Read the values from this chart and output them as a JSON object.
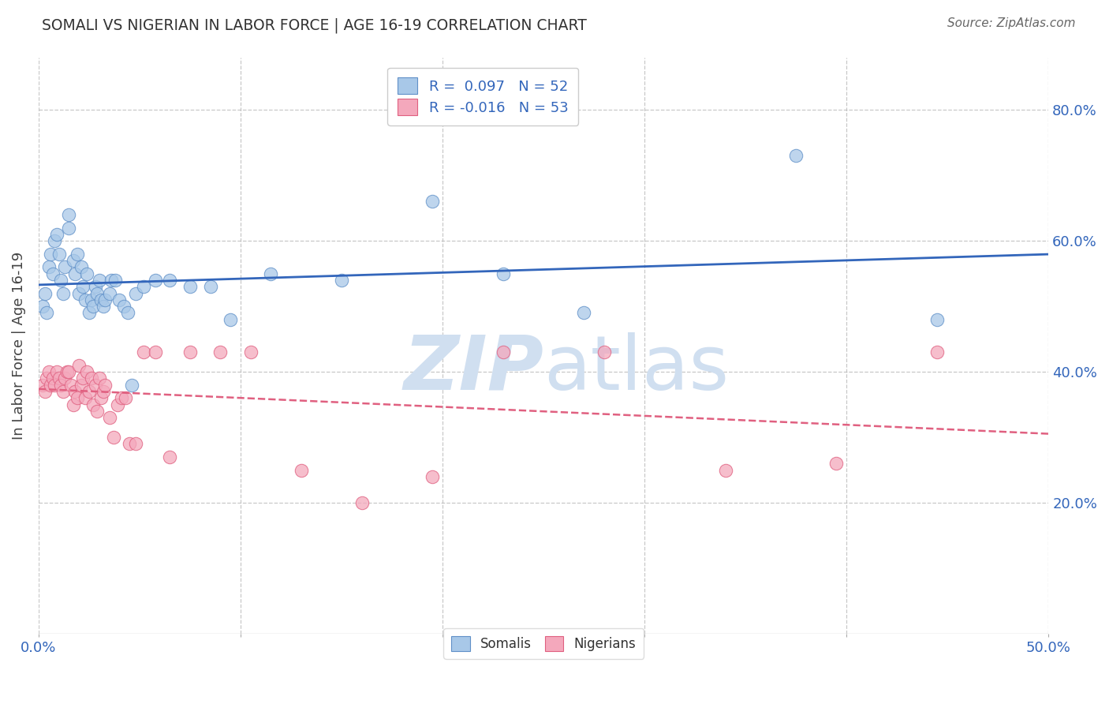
{
  "title": "SOMALI VS NIGERIAN IN LABOR FORCE | AGE 16-19 CORRELATION CHART",
  "source": "Source: ZipAtlas.com",
  "ylabel": "In Labor Force | Age 16-19",
  "xlim": [
    0.0,
    0.5
  ],
  "ylim": [
    0.0,
    0.88
  ],
  "yticks": [
    0.2,
    0.4,
    0.6,
    0.8
  ],
  "ytick_labels": [
    "20.0%",
    "40.0%",
    "60.0%",
    "80.0%"
  ],
  "xticks": [
    0.0,
    0.1,
    0.2,
    0.3,
    0.4,
    0.5
  ],
  "xtick_labels_show": [
    "0.0%",
    "50.0%"
  ],
  "somali_R": 0.097,
  "somali_N": 52,
  "nigerian_R": -0.016,
  "nigerian_N": 53,
  "somali_color": "#A8C8E8",
  "nigerian_color": "#F4A8BC",
  "somali_edge_color": "#6090C8",
  "nigerian_edge_color": "#E06080",
  "somali_line_color": "#3366BB",
  "nigerian_line_color": "#E06080",
  "background_color": "#FFFFFF",
  "watermark_color": "#D0DFF0",
  "legend_label_somali": "Somalis",
  "legend_label_nigerian": "Nigerians",
  "grid_color": "#BBBBBB",
  "axis_color": "#3366BB",
  "somali_x": [
    0.002,
    0.003,
    0.004,
    0.005,
    0.006,
    0.007,
    0.008,
    0.009,
    0.01,
    0.011,
    0.012,
    0.013,
    0.015,
    0.015,
    0.017,
    0.018,
    0.019,
    0.02,
    0.021,
    0.022,
    0.023,
    0.024,
    0.025,
    0.026,
    0.027,
    0.028,
    0.029,
    0.03,
    0.031,
    0.032,
    0.033,
    0.035,
    0.036,
    0.038,
    0.04,
    0.042,
    0.044,
    0.046,
    0.048,
    0.052,
    0.058,
    0.065,
    0.075,
    0.085,
    0.095,
    0.115,
    0.15,
    0.195,
    0.23,
    0.27,
    0.375,
    0.445
  ],
  "somali_y": [
    0.5,
    0.52,
    0.49,
    0.56,
    0.58,
    0.55,
    0.6,
    0.61,
    0.58,
    0.54,
    0.52,
    0.56,
    0.64,
    0.62,
    0.57,
    0.55,
    0.58,
    0.52,
    0.56,
    0.53,
    0.51,
    0.55,
    0.49,
    0.51,
    0.5,
    0.53,
    0.52,
    0.54,
    0.51,
    0.5,
    0.51,
    0.52,
    0.54,
    0.54,
    0.51,
    0.5,
    0.49,
    0.38,
    0.52,
    0.53,
    0.54,
    0.54,
    0.53,
    0.53,
    0.48,
    0.55,
    0.54,
    0.66,
    0.55,
    0.49,
    0.73,
    0.48
  ],
  "nigerian_x": [
    0.002,
    0.003,
    0.004,
    0.005,
    0.006,
    0.007,
    0.008,
    0.009,
    0.01,
    0.011,
    0.012,
    0.013,
    0.014,
    0.015,
    0.016,
    0.017,
    0.018,
    0.019,
    0.02,
    0.021,
    0.022,
    0.023,
    0.024,
    0.025,
    0.026,
    0.027,
    0.028,
    0.029,
    0.03,
    0.031,
    0.032,
    0.033,
    0.035,
    0.037,
    0.039,
    0.041,
    0.043,
    0.045,
    0.048,
    0.052,
    0.058,
    0.065,
    0.075,
    0.09,
    0.105,
    0.13,
    0.16,
    0.195,
    0.23,
    0.28,
    0.34,
    0.395,
    0.445
  ],
  "nigerian_y": [
    0.38,
    0.37,
    0.39,
    0.4,
    0.38,
    0.39,
    0.38,
    0.4,
    0.39,
    0.38,
    0.37,
    0.39,
    0.4,
    0.4,
    0.38,
    0.35,
    0.37,
    0.36,
    0.41,
    0.38,
    0.39,
    0.36,
    0.4,
    0.37,
    0.39,
    0.35,
    0.38,
    0.34,
    0.39,
    0.36,
    0.37,
    0.38,
    0.33,
    0.3,
    0.35,
    0.36,
    0.36,
    0.29,
    0.29,
    0.43,
    0.43,
    0.27,
    0.43,
    0.43,
    0.43,
    0.25,
    0.2,
    0.24,
    0.43,
    0.43,
    0.25,
    0.26,
    0.43
  ]
}
